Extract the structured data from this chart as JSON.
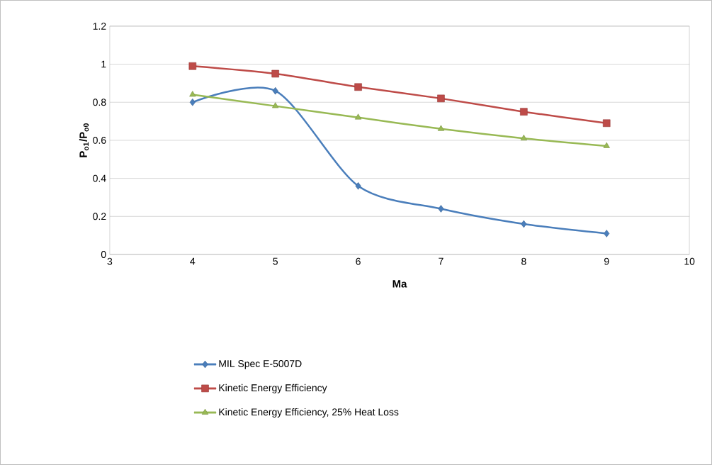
{
  "chart_data": {
    "type": "line",
    "xlabel": "Ma",
    "ylabel": "P$_{o1}$/P$_{o0}$",
    "x": [
      4,
      5,
      6,
      7,
      8,
      9
    ],
    "series": [
      {
        "name": "MIL Spec E-5007D",
        "color": "#4a7ebb",
        "marker": "diamond",
        "values": [
          0.8,
          0.86,
          0.36,
          0.24,
          0.16,
          0.11
        ]
      },
      {
        "name": "Kinetic Energy Efficiency",
        "color": "#be4b48",
        "marker": "square",
        "values": [
          0.99,
          0.95,
          0.88,
          0.82,
          0.75,
          0.69
        ]
      },
      {
        "name": "Kinetic Energy Efficiency, 25% Heat Loss",
        "color": "#98b954",
        "marker": "triangle",
        "values": [
          0.84,
          0.78,
          0.72,
          0.66,
          0.61,
          0.57
        ]
      }
    ],
    "xlim": [
      3,
      10
    ],
    "xticks": [
      3,
      4,
      5,
      6,
      7,
      8,
      9,
      10
    ],
    "ylim": [
      0,
      1.2
    ],
    "yticks": [
      0,
      0.2,
      0.4,
      0.6,
      0.8,
      1,
      1.2
    ],
    "grid": "y",
    "legend": "bottom",
    "line_style": "solid"
  }
}
